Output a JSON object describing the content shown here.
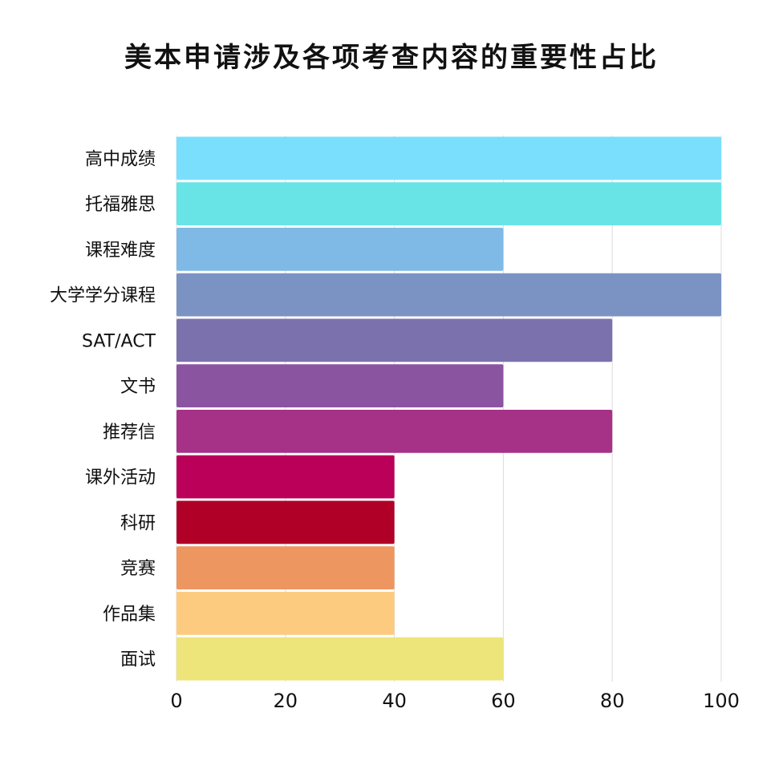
{
  "title": "美本申请涉及各项考查内容的重要性占比",
  "chart_data": {
    "type": "bar",
    "orientation": "horizontal",
    "title": "美本申请涉及各项考查内容的重要性占比",
    "xlabel": "",
    "ylabel": "",
    "xlim": [
      0,
      100
    ],
    "x_ticks": [
      0,
      20,
      40,
      60,
      80,
      100
    ],
    "grid": true,
    "legend": "none",
    "categories": [
      "高中成绩",
      "托福雅思",
      "课程难度",
      "大学学分课程",
      "SAT/ACT",
      "文书",
      "推荐信",
      "课外活动",
      "科研",
      "竞赛",
      "作品集",
      "面试"
    ],
    "values": [
      100,
      100,
      60,
      100,
      80,
      60,
      80,
      40,
      40,
      40,
      40,
      60
    ],
    "colors": [
      "#7adffd",
      "#68e4e6",
      "#7fb9e6",
      "#7b93c3",
      "#7b72ad",
      "#8b54a0",
      "#a53287",
      "#bb005a",
      "#b10028",
      "#ed9660",
      "#fdcb80",
      "#ede47a"
    ]
  }
}
